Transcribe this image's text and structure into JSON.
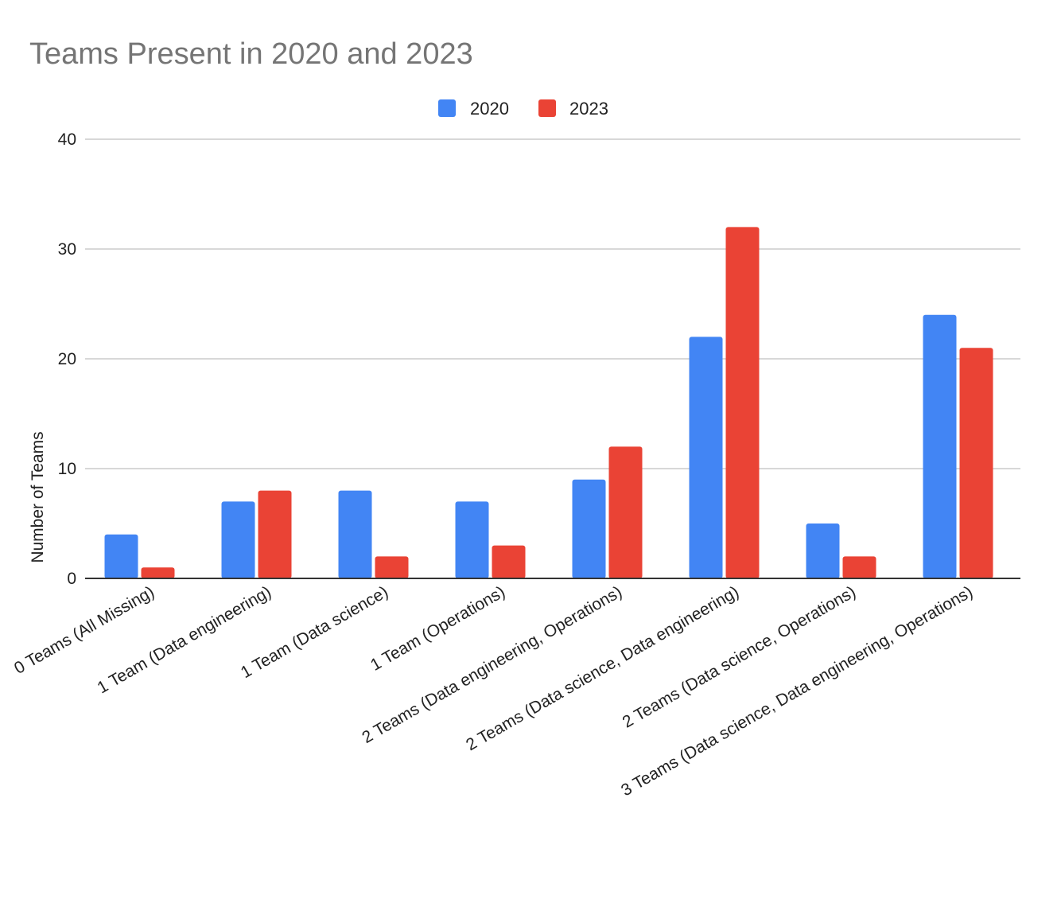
{
  "chart_data": {
    "type": "bar",
    "title": "Teams Present in 2020 and 2023",
    "xlabel": "",
    "ylabel": "Number of Teams",
    "ylim": [
      0,
      40
    ],
    "yticks": [
      0,
      10,
      20,
      30,
      40
    ],
    "grid": true,
    "legend_position": "top-center",
    "categories": [
      "0 Teams (All Missing)",
      "1 Team (Data engineering)",
      "1 Team (Data science)",
      "1 Team (Operations)",
      "2 Teams (Data engineering, Operations)",
      "2 Teams (Data science, Data engineering)",
      "2 Teams (Data science, Operations)",
      "3 Teams (Data science, Data engineering, Operations)"
    ],
    "series": [
      {
        "name": "2020",
        "color": "#4285f4",
        "values": [
          4,
          7,
          8,
          7,
          9,
          22,
          5,
          24
        ]
      },
      {
        "name": "2023",
        "color": "#ea4335",
        "values": [
          1,
          8,
          2,
          3,
          12,
          32,
          2,
          21
        ]
      }
    ]
  }
}
